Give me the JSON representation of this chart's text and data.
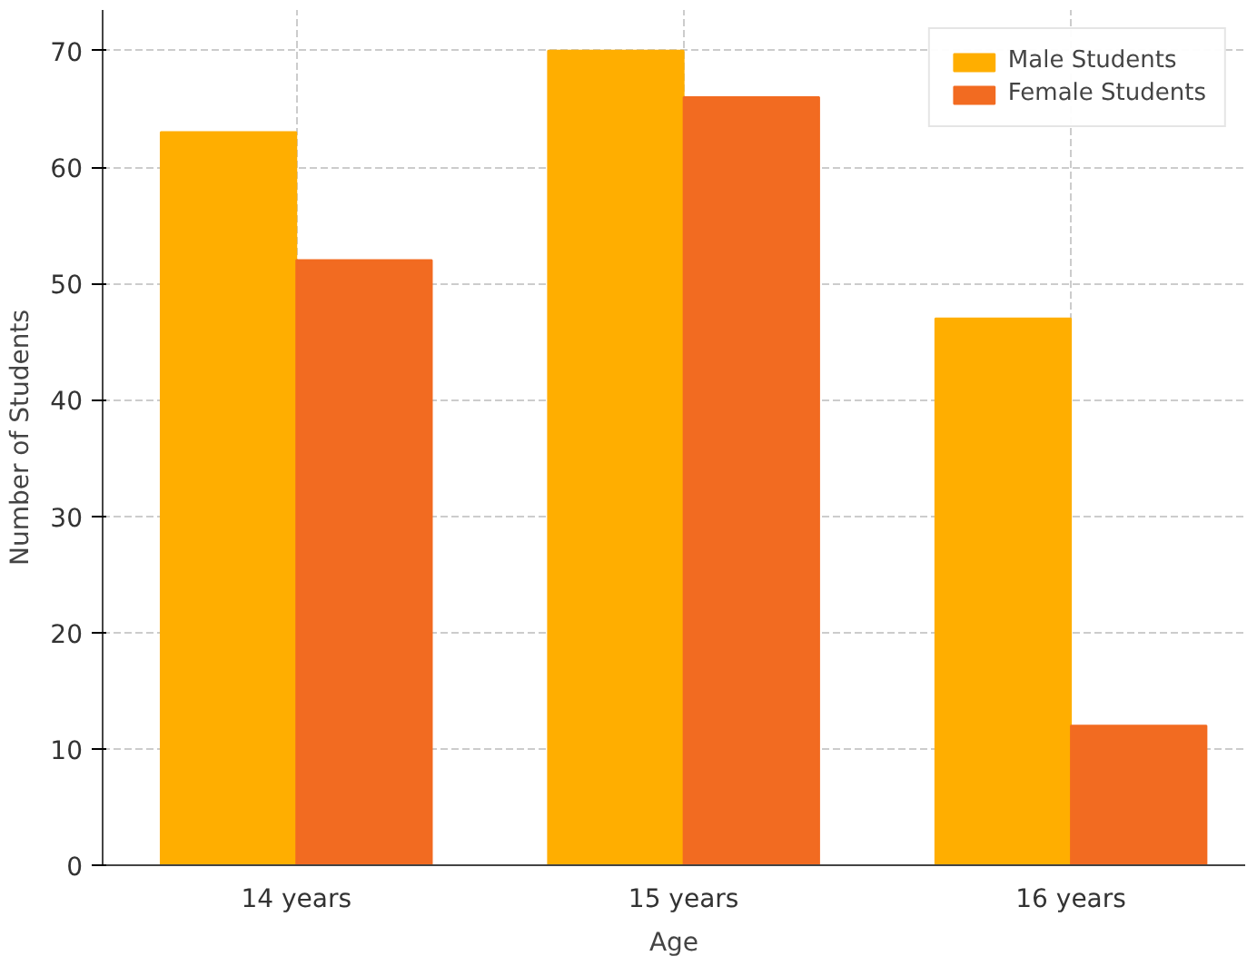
{
  "chart_data": {
    "type": "bar",
    "xlabel": "Age",
    "ylabel": "Number of Students",
    "categories": [
      "14 years",
      "15 years",
      "16 years"
    ],
    "series": [
      {
        "name": "Male Students",
        "color": "#ffae00",
        "values": [
          63,
          70,
          47
        ]
      },
      {
        "name": "Female Students",
        "color": "#f26b21",
        "values": [
          52,
          66,
          12
        ]
      }
    ],
    "ylim": [
      0,
      73.5
    ],
    "yticks": [
      0,
      10,
      20,
      30,
      40,
      50,
      60,
      70
    ],
    "grid": true,
    "legend": "top right"
  }
}
